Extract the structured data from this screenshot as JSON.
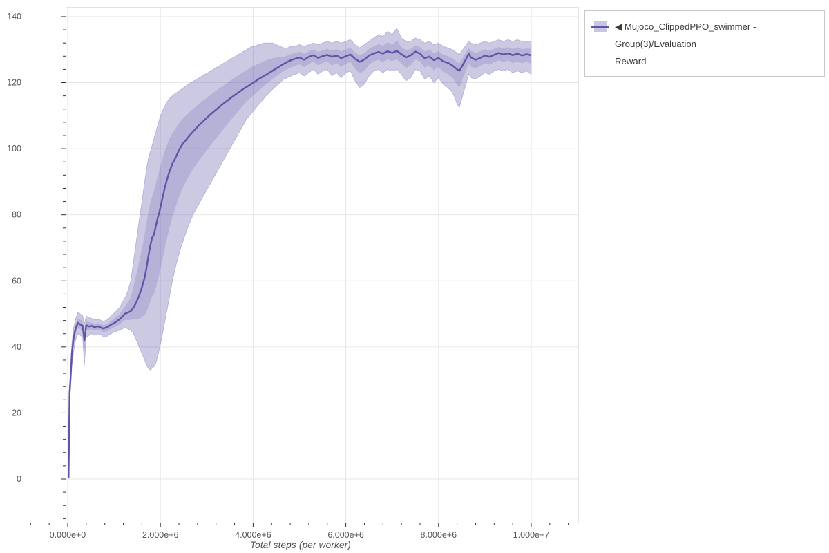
{
  "legend": {
    "lines": [
      "◀ Mujoco_ClippedPPO_swimmer - Group(3)/Evaluation",
      "Reward"
    ]
  },
  "colors": {
    "line": "#5d56a6",
    "band_fill": "rgba(99,92,171,0.33)",
    "band_inner": "rgba(99,92,171,0.22)",
    "band_edge": "rgba(120,113,185,0.45)",
    "grid": "#e6e6e6",
    "frame": "#e3e3e3",
    "spine": "#303030",
    "tick_label": "#565656"
  },
  "chart_data": {
    "type": "line",
    "title": "",
    "xlabel": "Total steps (per worker)",
    "ylabel": "",
    "xlim": [
      -970000,
      11050000
    ],
    "ylim": [
      -13.2,
      143.4
    ],
    "grid": true,
    "legend_position": "top-right",
    "x_major_ticks": {
      "values": [
        0,
        2000000,
        4000000,
        6000000,
        8000000,
        10000000
      ],
      "labels": [
        "0.000e+0",
        "2.000e+6",
        "4.000e+6",
        "6.000e+6",
        "8.000e+6",
        "1.000e+7"
      ]
    },
    "y_major_ticks": [
      0,
      20,
      40,
      60,
      80,
      100,
      120,
      140
    ],
    "x_minor_step": 400000,
    "y_minor_step": 4,
    "series": [
      {
        "name": "Mujoco_ClippedPPO_swimmer - Group(3)/Evaluation Reward",
        "x": [
          20000,
          40000,
          60000,
          90000,
          130000,
          170000,
          220000,
          270000,
          320000,
          360000,
          400000,
          460000,
          520000,
          580000,
          640000,
          700000,
          760000,
          820000,
          880000,
          940000,
          1000000,
          1060000,
          1120000,
          1180000,
          1240000,
          1300000,
          1360000,
          1420000,
          1480000,
          1540000,
          1600000,
          1660000,
          1700000,
          1740000,
          1780000,
          1820000,
          1860000,
          1900000,
          1940000,
          1980000,
          2020000,
          2060000,
          2100000,
          2140000,
          2180000,
          2220000,
          2260000,
          2300000,
          2350000,
          2400000,
          2450000,
          2500000,
          2550000,
          2600000,
          2660000,
          2720000,
          2780000,
          2840000,
          2900000,
          2960000,
          3020000,
          3080000,
          3140000,
          3200000,
          3260000,
          3320000,
          3380000,
          3440000,
          3500000,
          3560000,
          3620000,
          3680000,
          3740000,
          3800000,
          3860000,
          3920000,
          3980000,
          4040000,
          4100000,
          4160000,
          4220000,
          4280000,
          4350000,
          4420000,
          4500000,
          4580000,
          4660000,
          4740000,
          4820000,
          4900000,
          5000000,
          5100000,
          5200000,
          5300000,
          5400000,
          5500000,
          5600000,
          5700000,
          5800000,
          5900000,
          6000000,
          6100000,
          6200000,
          6300000,
          6400000,
          6500000,
          6600000,
          6700000,
          6800000,
          6900000,
          7000000,
          7100000,
          7200000,
          7300000,
          7400000,
          7500000,
          7600000,
          7700000,
          7800000,
          7900000,
          8000000,
          8100000,
          8200000,
          8300000,
          8350000,
          8400000,
          8450000,
          8500000,
          8600000,
          8650000,
          8700000,
          8800000,
          8900000,
          9000000,
          9100000,
          9200000,
          9300000,
          9400000,
          9500000,
          9600000,
          9700000,
          9800000,
          9900000,
          10000000
        ],
        "mean": [
          0.3,
          26,
          30,
          38,
          43,
          45.5,
          47.3,
          46.8,
          46.5,
          41.8,
          46.6,
          46.2,
          46.4,
          45.9,
          46.3,
          46.0,
          45.6,
          45.8,
          46.2,
          46.8,
          47.2,
          47.8,
          48.4,
          49.2,
          50.1,
          50.4,
          50.8,
          52,
          53.5,
          55.5,
          58,
          61,
          64,
          67.5,
          70.5,
          73,
          74,
          76.5,
          79,
          81,
          83.5,
          86,
          88.5,
          90.5,
          92.5,
          94,
          95.5,
          96.5,
          98,
          99.5,
          100.8,
          101.8,
          102.6,
          103.5,
          104.5,
          105.4,
          106.3,
          107.2,
          108,
          108.8,
          109.6,
          110.4,
          111.1,
          111.8,
          112.5,
          113.2,
          113.9,
          114.5,
          115.2,
          115.8,
          116.4,
          117,
          117.6,
          118.2,
          118.7,
          119.2,
          119.8,
          120.3,
          120.9,
          121.4,
          121.9,
          122.4,
          123,
          123.6,
          124.3,
          125,
          125.7,
          126.3,
          126.8,
          127.2,
          127.6,
          126.9,
          127.8,
          128.3,
          127.5,
          128.0,
          128.4,
          127.8,
          128.2,
          127.4,
          128.0,
          128.5,
          127.2,
          126.3,
          127.0,
          128.2,
          128.8,
          129.3,
          128.8,
          129.5,
          129.0,
          129.6,
          128.6,
          127.6,
          128.3,
          129.4,
          128.8,
          127.4,
          127.9,
          126.8,
          127.5,
          126.4,
          126.0,
          125.2,
          124.6,
          124.0,
          123.6,
          124.8,
          127.3,
          128.8,
          127.6,
          126.9,
          127.5,
          128.2,
          127.8,
          128.4,
          129.0,
          128.5,
          128.9,
          128.3,
          128.8,
          128.2,
          128.6,
          128.3
        ],
        "lower": [
          0.3,
          24,
          27,
          34,
          39,
          42,
          44,
          43.5,
          43,
          34.5,
          43,
          43.5,
          44,
          43.5,
          44,
          43.8,
          43.2,
          43.0,
          43.5,
          44,
          44.5,
          44.8,
          45,
          45.5,
          45.8,
          45.5,
          45,
          44,
          42,
          40,
          38,
          36,
          34.5,
          33.5,
          33,
          33.5,
          34,
          35,
          37,
          39.5,
          42,
          45,
          48,
          51,
          54,
          57,
          60,
          62.5,
          65.5,
          68,
          70.5,
          72.5,
          74.5,
          76.5,
          78.5,
          80.5,
          82,
          83.5,
          85,
          86.5,
          88,
          89.5,
          91,
          92.5,
          94,
          95.5,
          97,
          98.5,
          100,
          101.5,
          103,
          104.5,
          106,
          107.5,
          109,
          110,
          111,
          112,
          113,
          114,
          115,
          116,
          117,
          118,
          119,
          120,
          121,
          121.5,
          122,
          122.5,
          123,
          122,
          123,
          124,
          122.5,
          123.5,
          124,
          122,
          123,
          121.5,
          123,
          123.5,
          120.5,
          118.5,
          119.5,
          122,
          123.5,
          124,
          123,
          124,
          123.5,
          124,
          122.5,
          120.5,
          121.5,
          124,
          123.5,
          121,
          122,
          120,
          121.5,
          119.5,
          118.5,
          117,
          115.5,
          113.5,
          112.5,
          115,
          120,
          122.5,
          121.5,
          121,
          122,
          123,
          122.5,
          123.5,
          124,
          123.5,
          124,
          123,
          123.5,
          123,
          123.5,
          122.5
        ],
        "upper": [
          0.3,
          28,
          33,
          41,
          46,
          48.5,
          50.5,
          50,
          49.5,
          47,
          49.3,
          49,
          48.6,
          48.2,
          48.4,
          48.2,
          47.8,
          48.0,
          48.5,
          49.5,
          50.2,
          51,
          52,
          53.5,
          55,
          57,
          60,
          66,
          72,
          78,
          84,
          90,
          94,
          97,
          99,
          101,
          103,
          105,
          107,
          109,
          110.5,
          112,
          113,
          114,
          115,
          115.5,
          116,
          116.5,
          117,
          117.5,
          118,
          118.5,
          119,
          119.5,
          120,
          120.5,
          121,
          121.5,
          122,
          122.5,
          123,
          123.5,
          124,
          124.5,
          125,
          125.5,
          126,
          126.5,
          127,
          127.5,
          128,
          128.5,
          129,
          129.5,
          130,
          130.5,
          131,
          131,
          131.5,
          131.5,
          132,
          132,
          132,
          132,
          131.5,
          131,
          130.5,
          130.5,
          131,
          131,
          131.5,
          131,
          131.5,
          132,
          131.5,
          132,
          132.5,
          132,
          132.5,
          132,
          132.5,
          133,
          131.5,
          130.5,
          131.5,
          132.5,
          133.5,
          134.5,
          134,
          135.5,
          134.5,
          136.5,
          133.5,
          132.5,
          132.5,
          133.5,
          133,
          132,
          132.5,
          131.5,
          132,
          131,
          130.5,
          130,
          129.5,
          129,
          128.5,
          129.5,
          131.5,
          132.5,
          132,
          131.5,
          132,
          132.5,
          132,
          132.5,
          133,
          132.5,
          133,
          132.5,
          133,
          132.5,
          132.5,
          132.5
        ]
      }
    ]
  }
}
